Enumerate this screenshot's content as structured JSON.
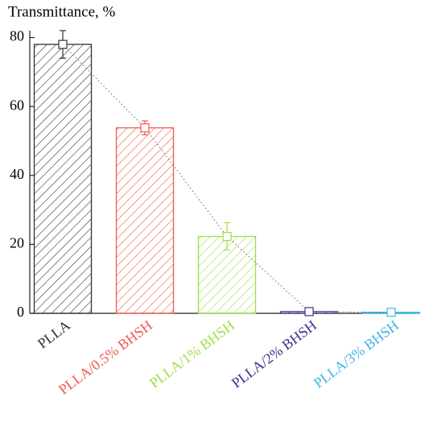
{
  "chart_data": {
    "type": "bar",
    "title": "Transmittance, %",
    "categories": [
      "PLLA",
      "PLLA/0.5% BHSH",
      "PLLA/1% BHSH",
      "PLLA/2% BHSH",
      "PLLA/3% BHSH"
    ],
    "values": [
      78,
      53.8,
      22.3,
      0.5,
      0.3
    ],
    "errors": [
      4,
      2,
      4,
      0.4,
      0.3
    ],
    "colors": [
      "#333333",
      "#f0594f",
      "#9be04a",
      "#3b2f8f",
      "#3fb4e6"
    ],
    "ylim": [
      0,
      82
    ],
    "yticks": [
      0,
      20,
      40,
      60,
      80
    ]
  }
}
